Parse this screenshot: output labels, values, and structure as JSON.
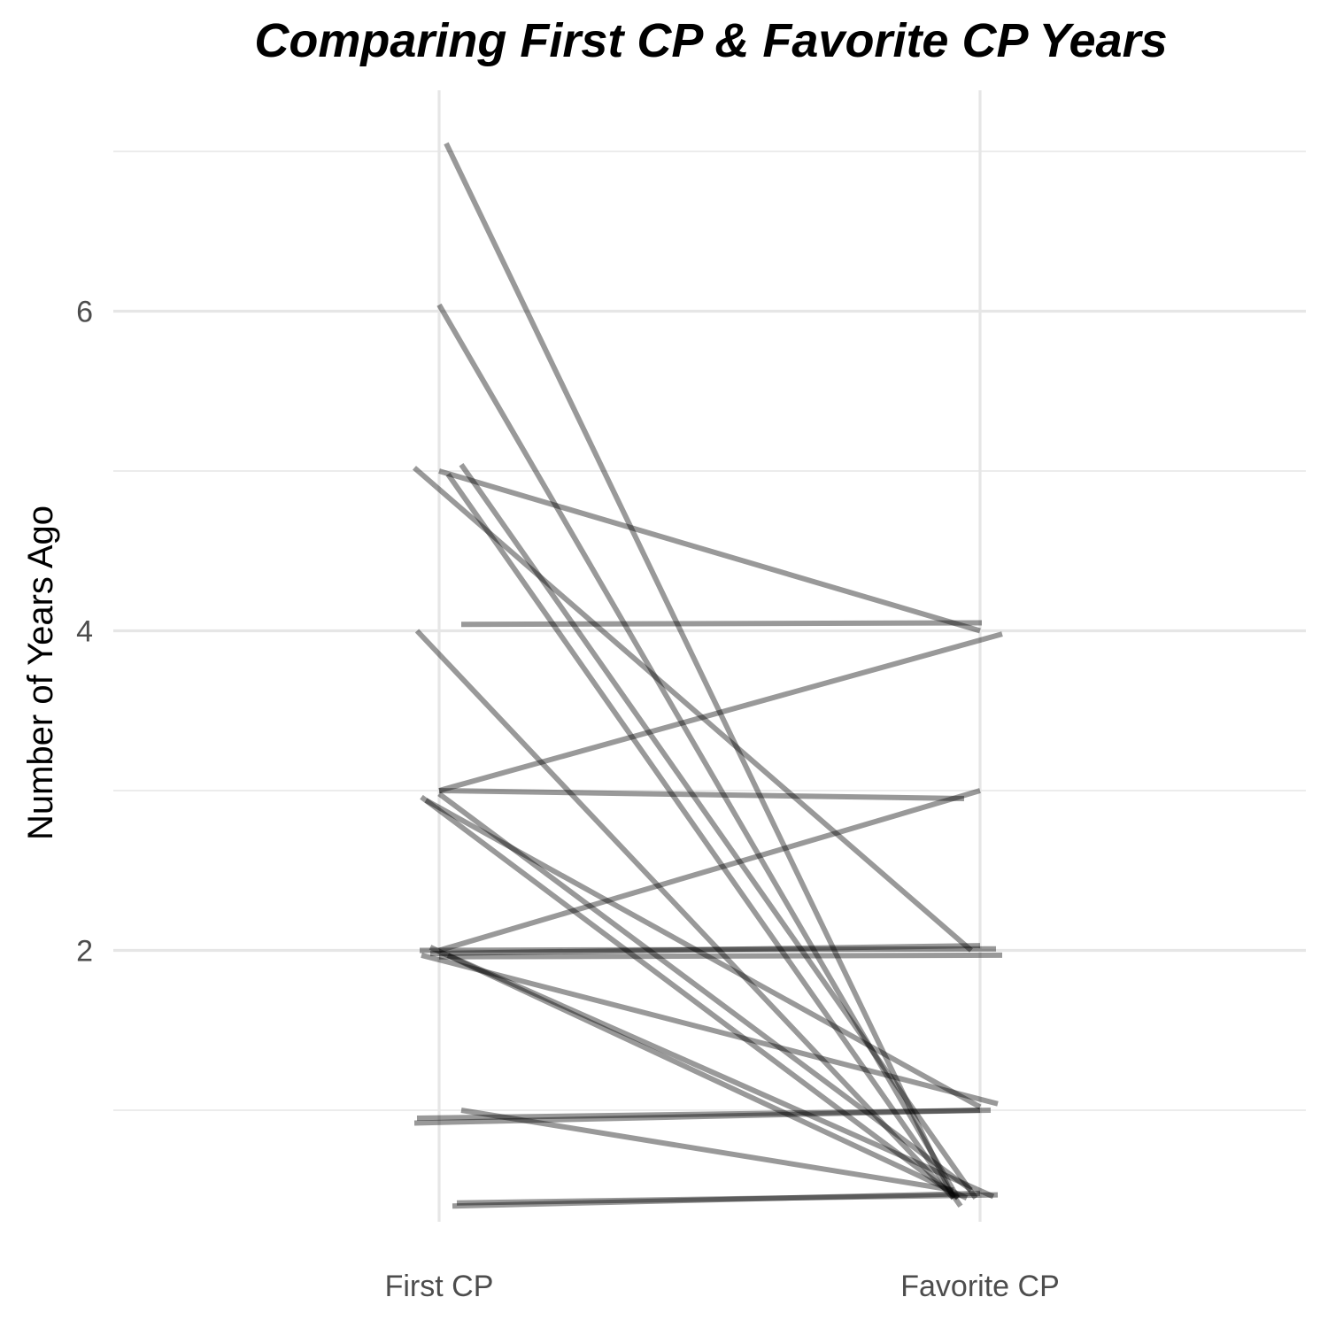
{
  "chart_data": {
    "type": "line",
    "title": "Comparing First CP & Favorite CP Years",
    "xlabel": "",
    "ylabel": "Number of Years Ago",
    "categories": [
      "First CP",
      "Favorite CP"
    ],
    "y_ticks": [
      2,
      4,
      6
    ],
    "ylim": [
      0.2,
      7.4
    ],
    "grid": true,
    "series": [
      {
        "values": [
          7.05,
          0.45
        ]
      },
      {
        "values": [
          6.04,
          0.45
        ]
      },
      {
        "values": [
          5.02,
          2.0
        ]
      },
      {
        "values": [
          5.04,
          0.45
        ]
      },
      {
        "values": [
          4.98,
          0.4
        ]
      },
      {
        "values": [
          5.0,
          4.0
        ]
      },
      {
        "values": [
          4.04,
          4.05
        ]
      },
      {
        "values": [
          4.0,
          0.45
        ]
      },
      {
        "values": [
          3.0,
          3.98
        ]
      },
      {
        "values": [
          3.0,
          2.95
        ]
      },
      {
        "values": [
          2.96,
          0.45
        ]
      },
      {
        "values": [
          2.98,
          0.5
        ]
      },
      {
        "values": [
          2.94,
          1.02
        ]
      },
      {
        "values": [
          2.0,
          2.01
        ]
      },
      {
        "values": [
          1.98,
          2.03
        ]
      },
      {
        "values": [
          1.96,
          1.97
        ]
      },
      {
        "values": [
          2.0,
          3.0
        ]
      },
      {
        "values": [
          2.02,
          0.45
        ]
      },
      {
        "values": [
          1.97,
          1.04
        ]
      },
      {
        "values": [
          1.97,
          0.46
        ]
      },
      {
        "values": [
          0.95,
          1.0
        ]
      },
      {
        "values": [
          0.92,
          1.0
        ]
      },
      {
        "values": [
          1.0,
          0.5
        ]
      },
      {
        "values": [
          0.4,
          0.48
        ]
      },
      {
        "values": [
          0.42,
          0.47
        ]
      }
    ]
  }
}
